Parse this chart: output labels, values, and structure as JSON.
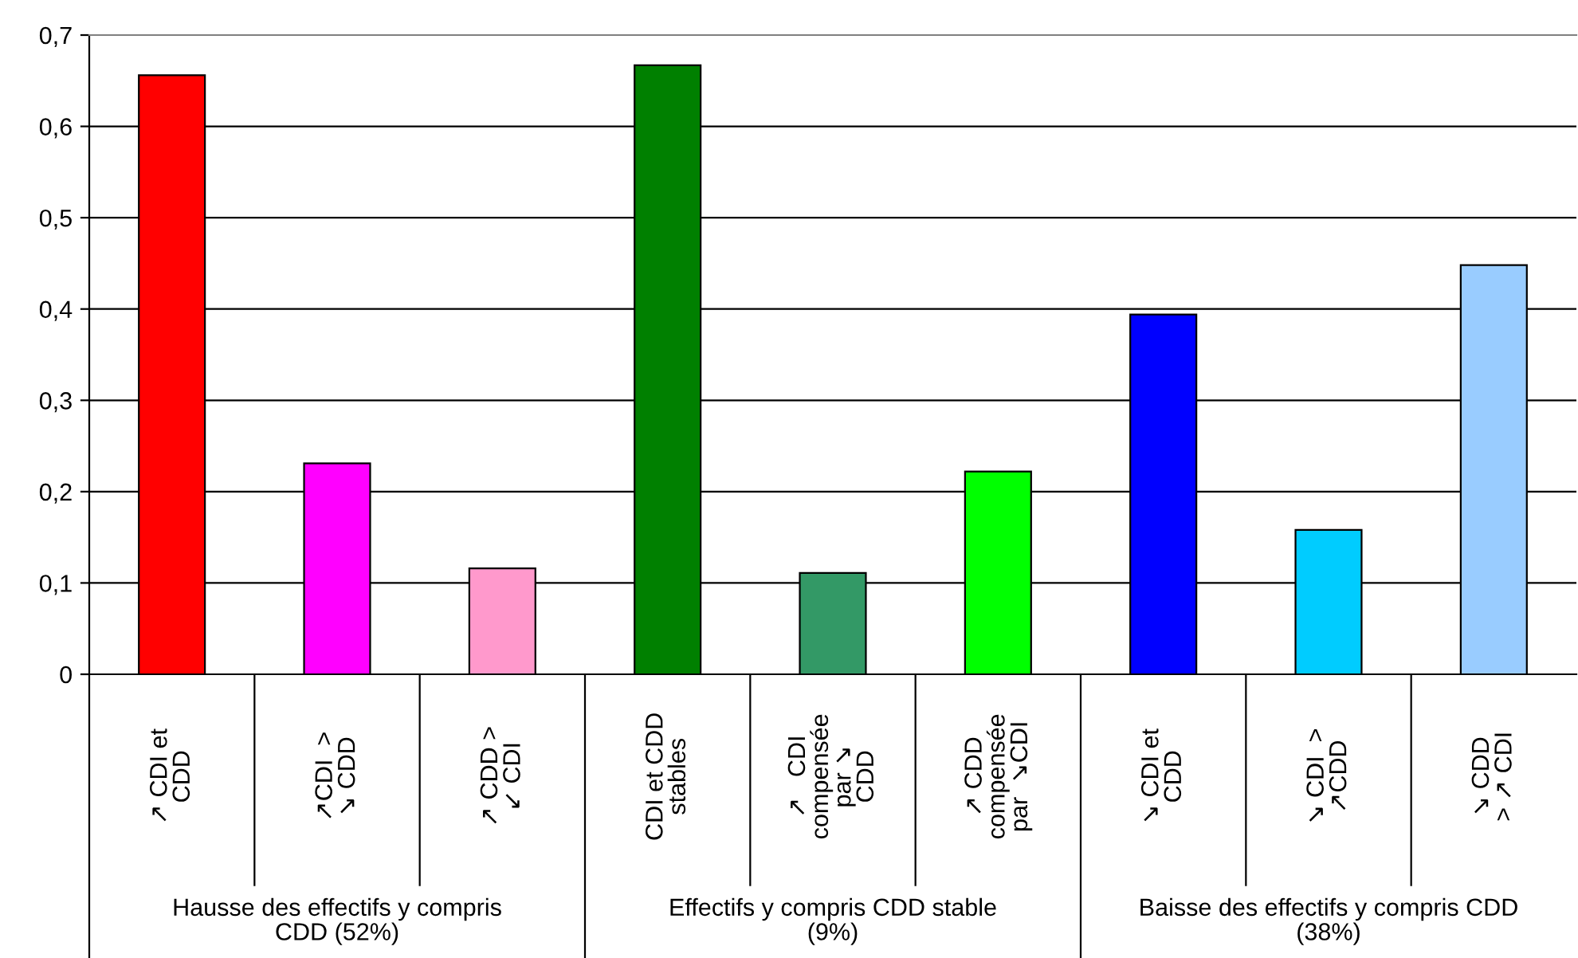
{
  "chart_data": {
    "type": "bar",
    "categories": [
      "↗ CDI et\nCDD",
      "↗CDI  >\n↘ CDD",
      "↗ CDD >\n↙ CDI",
      "CDI et CDD\nstables",
      "↗   CDI\ncompensée\npar ↘\nCDD",
      "↗ CDD\ncompensée\npar  ↘CDI",
      "↘ CDI et\nCDD",
      "↘ CDI  >\n↗CDD",
      "↘ CDD\n> ↗ CDI"
    ],
    "values": [
      0.656,
      0.231,
      0.116,
      0.667,
      0.111,
      0.222,
      0.394,
      0.158,
      0.448
    ],
    "colors": [
      "#ff0000",
      "#ff00ff",
      "#ff99cc",
      "#008000",
      "#339966",
      "#00ff00",
      "#0000ff",
      "#00ccff",
      "#99ccff"
    ],
    "annotations": [
      "Hausse des effectifs y compris\nCDD (52%)",
      "Effectifs y compris CDD stable\n(9%)",
      "Baisse des effectifs y compris CDD\n(38%)"
    ],
    "ylim": [
      0,
      0.7
    ],
    "yticks": [
      {
        "value": 0,
        "label": "0"
      },
      {
        "value": 0.1,
        "label": "0,1"
      },
      {
        "value": 0.2,
        "label": "0,2"
      },
      {
        "value": 0.3,
        "label": "0,3"
      },
      {
        "value": 0.4,
        "label": "0,4"
      },
      {
        "value": 0.5,
        "label": "0,5"
      },
      {
        "value": 0.6,
        "label": "0,6"
      },
      {
        "value": 0.7,
        "label": "0,7"
      }
    ],
    "grid": "y"
  }
}
